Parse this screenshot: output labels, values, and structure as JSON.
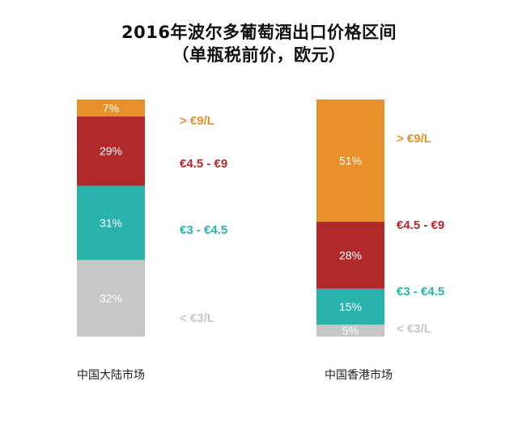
{
  "title_line1": "2016年波尔多葡萄酒出口价格区间",
  "title_line2": "（单瓶税前价，欧元）",
  "colors": {
    "gt9": "#e8912b",
    "r45_9": "#b02a2a",
    "r3_45": "#2ab3ad",
    "lt3": "#c7c7c7"
  },
  "chart_data": {
    "type": "bar",
    "stacked": true,
    "percent": true,
    "title": "2016年波尔多葡萄酒出口价格区间（单瓶税前价，欧元）",
    "categories": [
      "中国大陆市场",
      "中国香港市场"
    ],
    "series": [
      {
        "name": "< €3/L",
        "key": "lt3",
        "values": [
          32,
          5
        ],
        "labels": [
          "32%",
          "5%"
        ]
      },
      {
        "name": "€3 - €4.5",
        "key": "r3_45",
        "values": [
          31,
          15
        ],
        "labels": [
          "31%",
          "15%"
        ]
      },
      {
        "name": "€4.5 - €9",
        "key": "r45_9",
        "values": [
          29,
          28
        ],
        "labels": [
          "29%",
          "28%"
        ]
      },
      {
        "name": "> €9/L",
        "key": "gt9",
        "values": [
          7,
          51
        ],
        "labels": [
          "7%",
          "51%"
        ]
      }
    ]
  }
}
